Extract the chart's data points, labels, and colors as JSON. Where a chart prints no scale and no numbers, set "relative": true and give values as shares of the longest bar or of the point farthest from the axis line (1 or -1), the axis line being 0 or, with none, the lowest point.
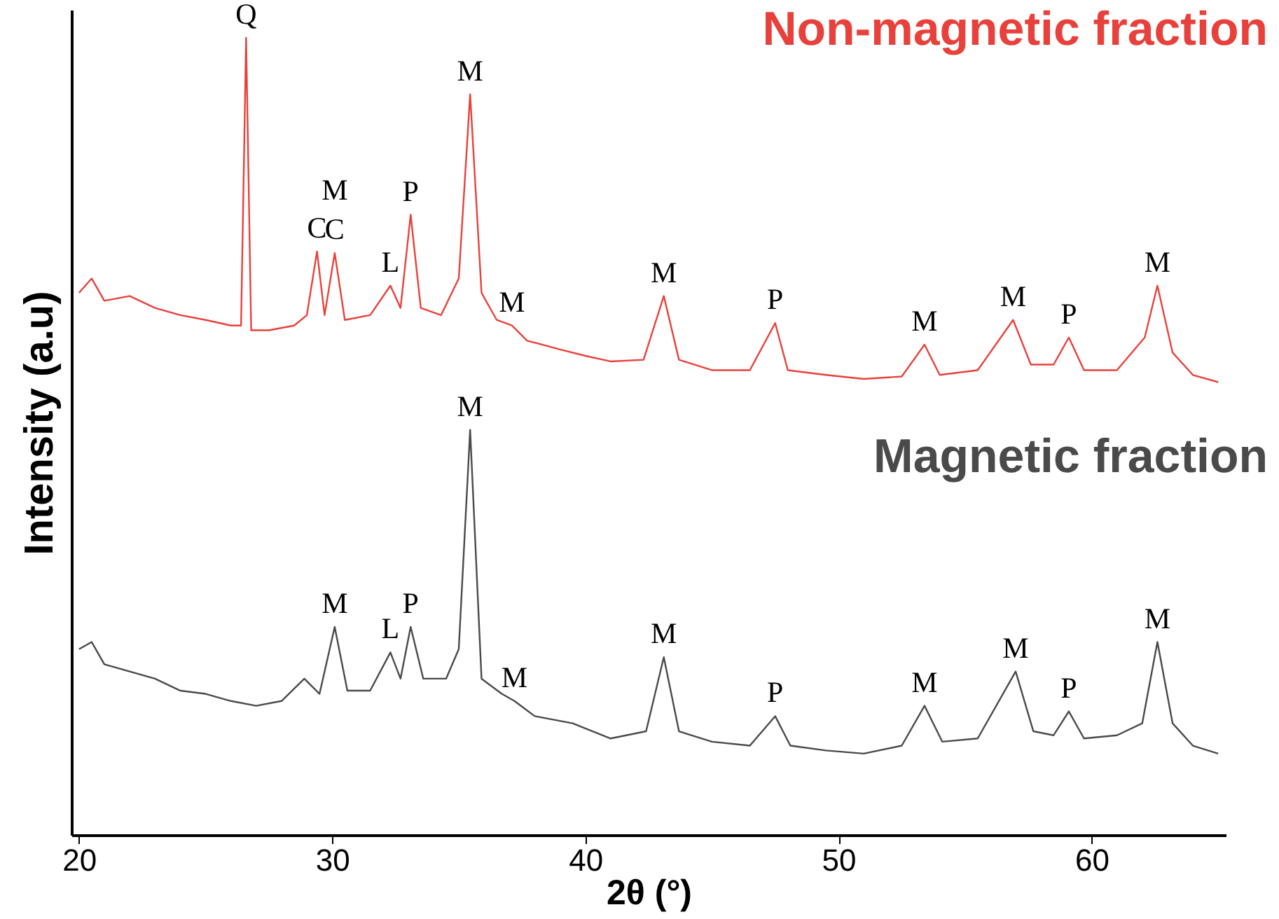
{
  "chart_data": {
    "type": "line",
    "relative": true,
    "xlabel": "2θ (°)",
    "ylabel": "Intensity (a.u)",
    "xlim": [
      19.7,
      65.3
    ],
    "xticks": [
      20,
      30,
      40,
      50,
      60
    ],
    "grid": false,
    "marker": "none",
    "line_style": "solid",
    "series": [
      {
        "name": "Non-magnetic fraction",
        "color": "#e8413c",
        "x": [
          20,
          20.5,
          21,
          22,
          23,
          24,
          25,
          26,
          26.4,
          26.6,
          26.8,
          27.5,
          28.5,
          29,
          29.4,
          29.7,
          30.1,
          30.5,
          31.5,
          32.3,
          32.7,
          33.1,
          33.5,
          34.3,
          35,
          35.45,
          35.9,
          36.5,
          37.1,
          37.7,
          39,
          40,
          41,
          42.3,
          43.1,
          43.7,
          45,
          46.5,
          47.5,
          48,
          49.5,
          51,
          52.5,
          53.4,
          54,
          55.5,
          56.9,
          57.6,
          58.5,
          59.1,
          59.7,
          61,
          62.1,
          62.6,
          63.2,
          64,
          65
        ],
        "values": [
          0.68,
          0.698,
          0.67,
          0.676,
          0.661,
          0.652,
          0.646,
          0.639,
          0.639,
          1.0,
          0.633,
          0.633,
          0.639,
          0.652,
          0.732,
          0.652,
          0.73,
          0.646,
          0.652,
          0.689,
          0.661,
          0.778,
          0.661,
          0.652,
          0.698,
          0.929,
          0.68,
          0.646,
          0.639,
          0.62,
          0.609,
          0.601,
          0.594,
          0.596,
          0.676,
          0.596,
          0.583,
          0.583,
          0.642,
          0.583,
          0.577,
          0.572,
          0.575,
          0.615,
          0.577,
          0.583,
          0.646,
          0.59,
          0.59,
          0.624,
          0.583,
          0.583,
          0.624,
          0.689,
          0.605,
          0.577,
          0.568
        ]
      },
      {
        "name": "Magnetic fraction",
        "color": "#4a4a4a",
        "x": [
          20,
          20.5,
          21,
          22,
          23,
          24,
          25,
          26,
          27,
          28,
          28.9,
          29.5,
          30.1,
          30.6,
          31.5,
          32.3,
          32.7,
          33.1,
          33.6,
          34.5,
          35,
          35.45,
          35.9,
          36.7,
          37.2,
          38,
          39.5,
          41,
          42.4,
          43.1,
          43.7,
          45,
          46.5,
          47.5,
          48.1,
          49.5,
          51,
          52.5,
          53.4,
          54.1,
          55.5,
          57,
          57.7,
          58.5,
          59.1,
          59.7,
          61,
          62,
          62.6,
          63.2,
          64,
          65
        ],
        "values": [
          0.233,
          0.242,
          0.214,
          0.205,
          0.196,
          0.181,
          0.177,
          0.168,
          0.162,
          0.168,
          0.196,
          0.177,
          0.261,
          0.181,
          0.181,
          0.229,
          0.196,
          0.261,
          0.196,
          0.196,
          0.233,
          0.508,
          0.196,
          0.177,
          0.168,
          0.149,
          0.14,
          0.121,
          0.13,
          0.223,
          0.13,
          0.117,
          0.112,
          0.149,
          0.112,
          0.106,
          0.102,
          0.112,
          0.162,
          0.117,
          0.121,
          0.205,
          0.13,
          0.125,
          0.155,
          0.121,
          0.125,
          0.14,
          0.242,
          0.14,
          0.112,
          0.102
        ]
      }
    ],
    "annotations": [
      {
        "text": "Q",
        "x": 26.6,
        "y": 1.0
      },
      {
        "text": "C",
        "x": 29.4,
        "y": 0.732
      },
      {
        "text": "C",
        "x": 30.1,
        "y": 0.73
      },
      {
        "text": "M",
        "x": 30.1,
        "y": 0.73
      },
      {
        "text": "L",
        "x": 32.3,
        "y": 0.689
      },
      {
        "text": "P",
        "x": 33.1,
        "y": 0.778
      },
      {
        "text": "M",
        "x": 35.45,
        "y": 0.929
      },
      {
        "text": "M",
        "x": 37.1,
        "y": 0.639
      },
      {
        "text": "M",
        "x": 43.1,
        "y": 0.676
      },
      {
        "text": "P",
        "x": 47.5,
        "y": 0.642
      },
      {
        "text": "M",
        "x": 53.4,
        "y": 0.615
      },
      {
        "text": "M",
        "x": 56.9,
        "y": 0.646
      },
      {
        "text": "P",
        "x": 59.1,
        "y": 0.624
      },
      {
        "text": "M",
        "x": 62.6,
        "y": 0.689
      },
      {
        "text": "M",
        "x": 35.45,
        "y": 0.508
      },
      {
        "text": "M",
        "x": 30.1,
        "y": 0.261
      },
      {
        "text": "L",
        "x": 32.3,
        "y": 0.229
      },
      {
        "text": "P",
        "x": 33.1,
        "y": 0.261
      },
      {
        "text": "M",
        "x": 37.2,
        "y": 0.168
      },
      {
        "text": "M",
        "x": 43.1,
        "y": 0.223
      },
      {
        "text": "P",
        "x": 47.5,
        "y": 0.149
      },
      {
        "text": "M",
        "x": 53.4,
        "y": 0.162
      },
      {
        "text": "M",
        "x": 57,
        "y": 0.205
      },
      {
        "text": "P",
        "x": 59.1,
        "y": 0.155
      },
      {
        "text": "M",
        "x": 62.6,
        "y": 0.242
      }
    ]
  }
}
